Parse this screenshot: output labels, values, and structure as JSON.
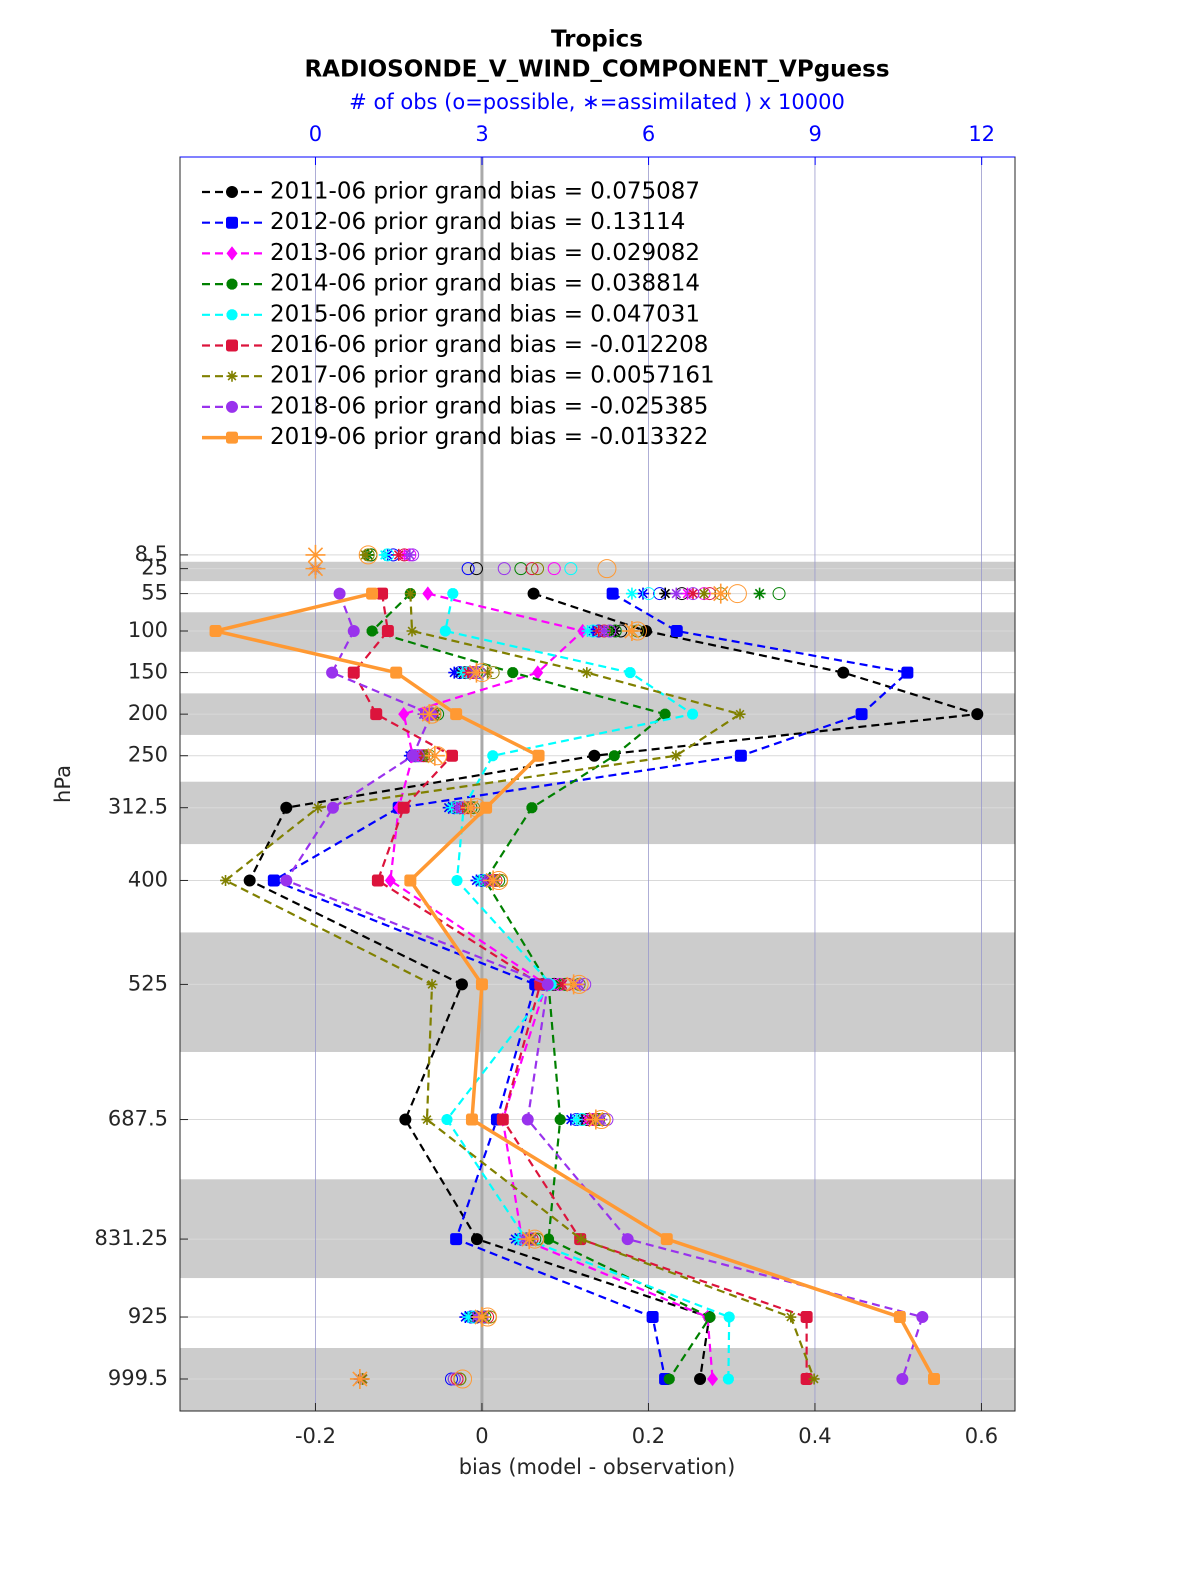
{
  "chart_data": {
    "type": "line",
    "title": "Tropics",
    "subtitle": "RADIOSONDE_V_WIND_COMPONENT_VPguess",
    "x2label": "# of obs (o=possible, ∗=assimilated ) x 10000",
    "xlabel": "bias (model - observation)",
    "ylabel": "hPa",
    "y": [
      8.5,
      25,
      55,
      100,
      150,
      200,
      250,
      312.5,
      400,
      525,
      687.5,
      831.25,
      925,
      999.5
    ],
    "xlim": [
      -0.3627,
      0.6403
    ],
    "xticks": [
      -0.2,
      0,
      0.2,
      0.4,
      0.6
    ],
    "x2lim": [
      -2.44,
      12.6
    ],
    "x2ticks": [
      0,
      3,
      6,
      9,
      12
    ],
    "ylim": [
      1038,
      -470
    ],
    "yticks": [
      8.5,
      25,
      55,
      100,
      150,
      200,
      250,
      312.5,
      400,
      525,
      687.5,
      831.25,
      925,
      999.5
    ],
    "grid": true,
    "legend": "upper left",
    "series": [
      {
        "name": "2011-06 prior grand bias = 0.075087",
        "color": "#000000",
        "marker": "circle",
        "line": "dashed",
        "values": [
          null,
          null,
          0.062,
          0.197,
          0.434,
          0.595,
          0.135,
          -0.235,
          -0.279,
          -0.024,
          -0.092,
          -0.006,
          0.273,
          0.262
        ],
        "obs_possible": [
          1.0,
          2.9,
          6.6,
          5.5,
          2.7,
          2.1,
          1.8,
          2.6,
          3.1,
          4.3,
          4.9,
          3.8,
          2.9,
          2.5
        ],
        "obs_assimilated": [
          0.95,
          0,
          6.3,
          5.4,
          2.6,
          2.05,
          1.75,
          2.5,
          3.0,
          4.2,
          4.8,
          3.7,
          2.8,
          0.8
        ]
      },
      {
        "name": "2012-06 prior grand bias = 0.13114",
        "color": "#0000ff",
        "marker": "square",
        "line": "dashed",
        "values": [
          null,
          null,
          0.157,
          0.234,
          0.511,
          0.456,
          0.311,
          -0.1,
          -0.25,
          0.064,
          0.018,
          -0.031,
          0.205,
          0.22
        ],
        "obs_possible": [
          1.4,
          2.75,
          6.2,
          5.1,
          2.6,
          2.0,
          1.75,
          2.5,
          3.0,
          4.1,
          4.7,
          3.7,
          2.8,
          2.45
        ],
        "obs_assimilated": [
          1.3,
          0,
          5.9,
          5.0,
          2.5,
          1.95,
          1.7,
          2.4,
          2.9,
          4.0,
          4.6,
          3.6,
          2.7,
          0.8
        ]
      },
      {
        "name": "2013-06 prior grand bias = 0.029082",
        "color": "#ff00ff",
        "marker": "diamond",
        "line": "dashed",
        "values": [
          null,
          null,
          -0.065,
          0.121,
          0.067,
          -0.094,
          -0.083,
          -0.1,
          -0.11,
          0.077,
          0.025,
          0.048,
          0.271,
          0.277
        ],
        "obs_possible": [
          1.7,
          4.3,
          7.0,
          5.3,
          2.8,
          2.05,
          1.9,
          2.7,
          3.2,
          4.4,
          5.0,
          3.9,
          3.0,
          2.55
        ],
        "obs_assimilated": [
          1.6,
          0,
          6.7,
          5.2,
          2.7,
          2.0,
          1.85,
          2.6,
          3.1,
          4.3,
          4.9,
          3.8,
          2.9,
          0.85
        ]
      },
      {
        "name": "2014-06 prior grand bias = 0.038814",
        "color": "#008000",
        "marker": "hexagram",
        "line": "dashed",
        "values": [
          null,
          null,
          -0.086,
          -0.132,
          0.037,
          0.22,
          0.159,
          0.06,
          0.004,
          0.08,
          0.094,
          0.08,
          0.274,
          0.225
        ],
        "obs_possible": [
          1.0,
          3.7,
          8.35,
          5.4,
          2.9,
          2.2,
          2.0,
          2.8,
          3.3,
          4.5,
          5.1,
          3.95,
          3.05,
          2.6
        ],
        "obs_assimilated": [
          0.95,
          0,
          8.0,
          5.3,
          2.8,
          2.15,
          1.95,
          2.7,
          3.2,
          4.4,
          5.0,
          3.85,
          2.95,
          0.85
        ]
      },
      {
        "name": "2015-06 prior grand bias = 0.047031",
        "color": "#00ffff",
        "marker": "hexagram",
        "line": "dashed",
        "values": [
          null,
          null,
          -0.035,
          -0.044,
          0.178,
          0.253,
          0.013,
          -0.022,
          -0.03,
          0.083,
          -0.042,
          0.053,
          0.297,
          0.296
        ],
        "obs_possible": [
          1.3,
          4.6,
          6.0,
          5.0,
          2.75,
          2.15,
          1.85,
          2.55,
          3.05,
          4.2,
          4.8,
          3.75,
          2.85,
          2.5
        ],
        "obs_assimilated": [
          1.25,
          0,
          5.7,
          4.9,
          2.65,
          2.1,
          1.8,
          2.45,
          2.95,
          4.1,
          4.7,
          3.65,
          2.75,
          0.8
        ]
      },
      {
        "name": "2016-06 prior grand bias = -0.012208",
        "color": "#dc143c",
        "marker": "square",
        "line": "dashed",
        "values": [
          null,
          null,
          -0.12,
          -0.113,
          -0.154,
          -0.127,
          -0.036,
          -0.094,
          -0.125,
          0.07,
          0.025,
          0.118,
          0.39,
          0.39
        ],
        "obs_possible": [
          1.6,
          3.9,
          7.1,
          5.2,
          2.85,
          2.1,
          1.95,
          2.75,
          3.25,
          4.55,
          5.05,
          3.9,
          3.1,
          2.55
        ],
        "obs_assimilated": [
          1.5,
          0,
          6.8,
          5.1,
          2.75,
          2.05,
          1.9,
          2.65,
          3.15,
          4.45,
          4.95,
          3.8,
          3.0,
          0.85
        ]
      },
      {
        "name": "2017-06 prior grand bias = 0.0057161",
        "color": "#808000",
        "marker": "asterisk",
        "line": "dashed",
        "values": [
          null,
          null,
          -0.086,
          -0.084,
          0.126,
          0.31,
          0.233,
          -0.197,
          -0.308,
          -0.06,
          -0.066,
          0.119,
          0.371,
          0.399
        ],
        "obs_possible": [
          0.95,
          4.0,
          7.3,
          5.8,
          3.2,
          2.15,
          2.05,
          2.85,
          3.35,
          4.75,
          5.2,
          4.0,
          3.15,
          2.6
        ],
        "obs_assimilated": [
          0.9,
          0,
          7.0,
          5.7,
          3.1,
          2.1,
          2.0,
          2.75,
          3.25,
          4.65,
          5.1,
          3.9,
          3.05,
          0.85
        ]
      },
      {
        "name": "2018-06 prior grand bias = -0.025385",
        "color": "#9932ed",
        "marker": "circle",
        "line": "dashed",
        "values": [
          null,
          null,
          -0.171,
          -0.154,
          -0.18,
          -0.061,
          -0.083,
          -0.179,
          -0.235,
          0.079,
          0.055,
          0.175,
          0.529,
          0.505
        ],
        "obs_possible": [
          1.75,
          3.4,
          6.8,
          5.3,
          2.95,
          2.0,
          1.85,
          2.65,
          3.15,
          4.85,
          5.25,
          3.85,
          3.0,
          2.5
        ],
        "obs_assimilated": [
          1.7,
          0,
          6.5,
          5.2,
          2.85,
          1.95,
          1.8,
          2.55,
          3.05,
          4.75,
          5.15,
          3.75,
          2.9,
          0.8
        ]
      },
      {
        "name": "2019-06 prior grand bias = -0.013322",
        "color": "#ff9933",
        "marker": "square",
        "line": "solid",
        "values": [
          null,
          null,
          -0.132,
          -0.32,
          -0.103,
          -0.031,
          0.068,
          0.005,
          -0.086,
          0.0,
          -0.012,
          0.222,
          0.502,
          0.543
        ],
        "obs_possible": [
          0.95,
          5.25,
          7.6,
          5.8,
          3.0,
          2.1,
          2.2,
          2.9,
          3.3,
          4.75,
          5.15,
          3.95,
          3.1,
          2.65
        ],
        "obs_assimilated": [
          0,
          0,
          7.3,
          5.7,
          2.9,
          2.05,
          2.15,
          2.8,
          3.2,
          4.65,
          5.05,
          3.85,
          3.0,
          0.8
        ]
      }
    ]
  }
}
